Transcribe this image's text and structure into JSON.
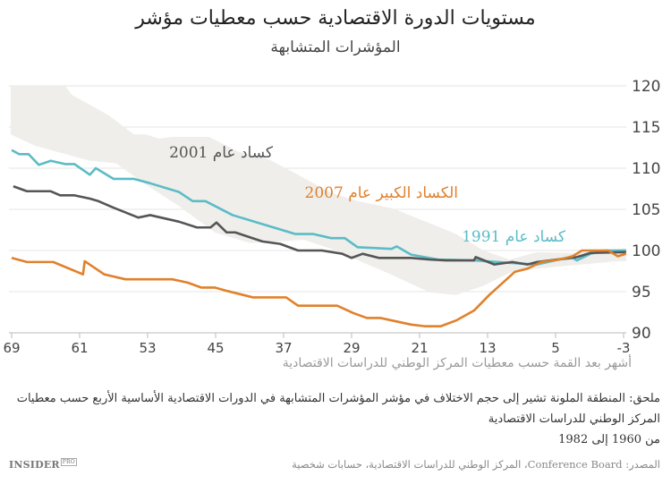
{
  "title": "مستويات الدورة الاقتصادية حسب معطيات مؤشر",
  "subtitle": "المؤشرات المتشابهة",
  "logo": {
    "main": "INSIDER",
    "sub": "PRO"
  },
  "note": {
    "line1": "ملحق: المنطقة الملونة تشير إلى حجم الاختلاف في مؤشر المؤشرات المتشابهة في الدورات الاقتصادية الأساسية الأربع حسب معطيات المركز الوطني للدراسات الاقتصادية",
    "line2": "من 1960 إلى 1982"
  },
  "source": "المصدر: Conference Board، المركز الوطني للدراسات الاقتصادية، حسابات شخصية",
  "colors": {
    "r1991": "#5bbcc6",
    "r2001": "#555555",
    "r2007": "#e0812c",
    "band": "#efeeeb",
    "grid": "#e6e6e6"
  },
  "chart_data": {
    "type": "line",
    "title": "مستويات الدورة الاقتصادية حسب معطيات مؤشر",
    "subtitle": "المؤشرات المتشابهة",
    "xlabel": "أشهر بعد القمة حسب معطيات المركز الوطني للدراسات الاقتصادية",
    "ylabel": "",
    "xlim": [
      69,
      -3
    ],
    "ylim": [
      90,
      120
    ],
    "x_reversed": true,
    "xticks": [
      "69",
      "61",
      "53",
      "45",
      "37",
      "29",
      "21",
      "13",
      "5",
      "-3"
    ],
    "yticks": [
      "120",
      "115",
      "110",
      "105",
      "100",
      "95",
      "90"
    ],
    "y_axis_position": "right",
    "grid": true,
    "series": [
      {
        "key": "r1991",
        "name": "كساد عام 1991",
        "points": [
          [
            69,
            112.2
          ],
          [
            68.1,
            111.7
          ],
          [
            67,
            111.7
          ],
          [
            65.8,
            110.4
          ],
          [
            64.4,
            110.9
          ],
          [
            62.7,
            110.5
          ],
          [
            61.6,
            110.5
          ],
          [
            59.8,
            109.2
          ],
          [
            59.1,
            110
          ],
          [
            57,
            108.7
          ],
          [
            54.6,
            108.7
          ],
          [
            52.8,
            108.2
          ],
          [
            49.3,
            107.1
          ],
          [
            47.7,
            106
          ],
          [
            46.2,
            106
          ],
          [
            43,
            104.3
          ],
          [
            39.8,
            103.3
          ],
          [
            35.6,
            102
          ],
          [
            33.5,
            102
          ],
          [
            31.4,
            101.5
          ],
          [
            29.8,
            101.5
          ],
          [
            28.3,
            100.4
          ],
          [
            24.3,
            100.2
          ],
          [
            23.7,
            100.5
          ],
          [
            22,
            99.5
          ],
          [
            18.8,
            98.9
          ],
          [
            14.6,
            98.8
          ],
          [
            10.4,
            98.5
          ],
          [
            7.2,
            98.3
          ],
          [
            4.6,
            98.9
          ],
          [
            3,
            99.1
          ],
          [
            2.5,
            98.8
          ],
          [
            0.9,
            99.6
          ],
          [
            -0.7,
            100
          ],
          [
            -3.3,
            100
          ]
        ]
      },
      {
        "key": "r2001",
        "name": "كساد عام 2001",
        "points": [
          [
            68.8,
            107.8
          ],
          [
            67.2,
            107.2
          ],
          [
            64.4,
            107.2
          ],
          [
            63.3,
            106.7
          ],
          [
            61.6,
            106.7
          ],
          [
            59.8,
            106.3
          ],
          [
            58.8,
            106
          ],
          [
            57,
            105.2
          ],
          [
            54.1,
            104
          ],
          [
            52.7,
            104.3
          ],
          [
            49.3,
            103.5
          ],
          [
            47.2,
            102.8
          ],
          [
            45.6,
            102.8
          ],
          [
            44.9,
            103.4
          ],
          [
            43.7,
            102.2
          ],
          [
            42.7,
            102.2
          ],
          [
            39.5,
            101.1
          ],
          [
            37.4,
            100.8
          ],
          [
            35.3,
            100
          ],
          [
            32.5,
            100
          ],
          [
            30.1,
            99.6
          ],
          [
            29,
            99.1
          ],
          [
            27.7,
            99.6
          ],
          [
            25.8,
            99.1
          ],
          [
            22,
            99.1
          ],
          [
            19.8,
            98.9
          ],
          [
            17.9,
            98.8
          ],
          [
            14.6,
            98.8
          ],
          [
            14.4,
            99.2
          ],
          [
            12.2,
            98.3
          ],
          [
            10.1,
            98.6
          ],
          [
            8.3,
            98.3
          ],
          [
            7.2,
            98.6
          ],
          [
            2.5,
            99.2
          ],
          [
            0.9,
            99.7
          ],
          [
            -3.3,
            99.8
          ]
        ]
      },
      {
        "key": "r2007",
        "name": "الكساد الكبير عام 2007",
        "points": [
          [
            69,
            99.1
          ],
          [
            67.2,
            98.6
          ],
          [
            64.1,
            98.6
          ],
          [
            60.6,
            97.1
          ],
          [
            60.4,
            98.7
          ],
          [
            58.1,
            97.1
          ],
          [
            55.6,
            96.5
          ],
          [
            50.1,
            96.5
          ],
          [
            48.3,
            96.1
          ],
          [
            46.7,
            95.5
          ],
          [
            45.1,
            95.5
          ],
          [
            43.7,
            95.1
          ],
          [
            40.6,
            94.3
          ],
          [
            36.7,
            94.3
          ],
          [
            35.3,
            93.3
          ],
          [
            31.4,
            93.3
          ],
          [
            30.7,
            93.3
          ],
          [
            28.8,
            92.4
          ],
          [
            27.2,
            91.8
          ],
          [
            25.6,
            91.8
          ],
          [
            22,
            91
          ],
          [
            20.4,
            90.8
          ],
          [
            18.5,
            90.8
          ],
          [
            16.7,
            91.5
          ],
          [
            14.6,
            92.7
          ],
          [
            12.8,
            94.6
          ],
          [
            9.8,
            97.4
          ],
          [
            8.3,
            97.8
          ],
          [
            6.7,
            98.6
          ],
          [
            4.6,
            98.9
          ],
          [
            3,
            99.3
          ],
          [
            1.9,
            100
          ],
          [
            -1.2,
            100
          ],
          [
            -2.3,
            99.3
          ],
          [
            -3.3,
            99.6
          ]
        ]
      }
    ],
    "band": {
      "upper": [
        [
          69.1,
          120
        ],
        [
          62.7,
          120
        ],
        [
          61.9,
          118.9
        ],
        [
          57.7,
          116.5
        ],
        [
          54.6,
          114.1
        ],
        [
          53.2,
          114.1
        ],
        [
          51.7,
          113.6
        ],
        [
          50.1,
          113.8
        ],
        [
          45.8,
          113.8
        ],
        [
          42.3,
          112
        ],
        [
          38.8,
          111.1
        ],
        [
          35.3,
          109.2
        ],
        [
          31.4,
          107
        ],
        [
          28.3,
          106
        ],
        [
          24.1,
          105.1
        ],
        [
          19.8,
          103.3
        ],
        [
          16.7,
          102
        ],
        [
          13.5,
          100
        ],
        [
          10.4,
          98.9
        ],
        [
          7.2,
          99.8
        ],
        [
          3,
          99.7
        ],
        [
          -3.3,
          100.3
        ]
      ],
      "lower": [
        [
          69.1,
          114.1
        ],
        [
          66.2,
          112.7
        ],
        [
          65.1,
          112.4
        ],
        [
          59.8,
          110.9
        ],
        [
          56.7,
          110.6
        ],
        [
          53.5,
          108.2
        ],
        [
          49.3,
          105.4
        ],
        [
          45.1,
          102.2
        ],
        [
          40.9,
          100.9
        ],
        [
          37.7,
          101.1
        ],
        [
          34.6,
          101.3
        ],
        [
          31.4,
          100.2
        ],
        [
          24.4,
          97.1
        ],
        [
          19.8,
          94.9
        ],
        [
          16.7,
          94.6
        ],
        [
          13.5,
          95.7
        ],
        [
          10.4,
          97.3
        ],
        [
          7.2,
          97.8
        ],
        [
          3,
          98.2
        ],
        [
          -2.3,
          98.7
        ],
        [
          -3.3,
          98.7
        ]
      ]
    },
    "annotations": [
      {
        "series": "r2001",
        "text": "كساد عام 2001"
      },
      {
        "series": "r2007",
        "text": "الكساد الكبير عام 2007"
      },
      {
        "series": "r1991",
        "text": "كساد عام 1991"
      }
    ]
  }
}
